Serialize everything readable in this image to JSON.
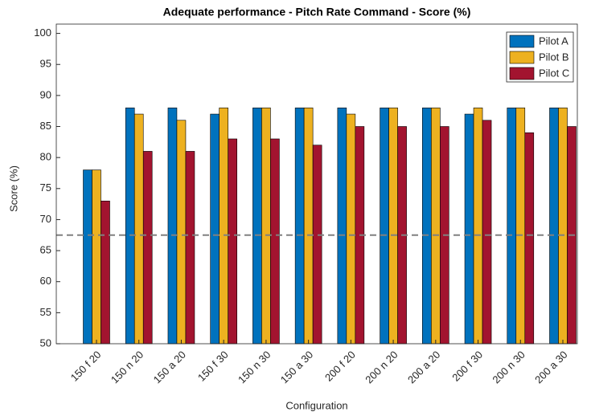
{
  "chart_data": {
    "type": "bar",
    "title": "Adequate performance - Pitch Rate Command - Score (%)",
    "x_label": "Configuration",
    "y_label": "Score (%)",
    "categories": [
      "150 f 20",
      "150 n 20",
      "150 a 20",
      "150 f 30",
      "150 n 30",
      "150 a 30",
      "200 f 20",
      "200 n 20",
      "200 a 20",
      "200 f 30",
      "200 n 30",
      "200 a 30"
    ],
    "series": [
      {
        "name": "Pilot A",
        "color": "#0072BD",
        "values": [
          78,
          88,
          88,
          87,
          88,
          88,
          88,
          88,
          88,
          87,
          88,
          88
        ]
      },
      {
        "name": "Pilot B",
        "color": "#EDB120",
        "values": [
          78,
          87,
          86,
          88,
          88,
          88,
          87,
          88,
          88,
          88,
          88,
          88
        ]
      },
      {
        "name": "Pilot C",
        "color": "#A2142F",
        "values": [
          73,
          81,
          81,
          83,
          83,
          82,
          85,
          85,
          85,
          86,
          84,
          85
        ]
      }
    ],
    "reference_line": 67.5,
    "ylim": [
      50,
      101.5
    ],
    "yticks": [
      50,
      55,
      60,
      65,
      70,
      75,
      80,
      85,
      90,
      95,
      100
    ],
    "legend": "upper right"
  }
}
